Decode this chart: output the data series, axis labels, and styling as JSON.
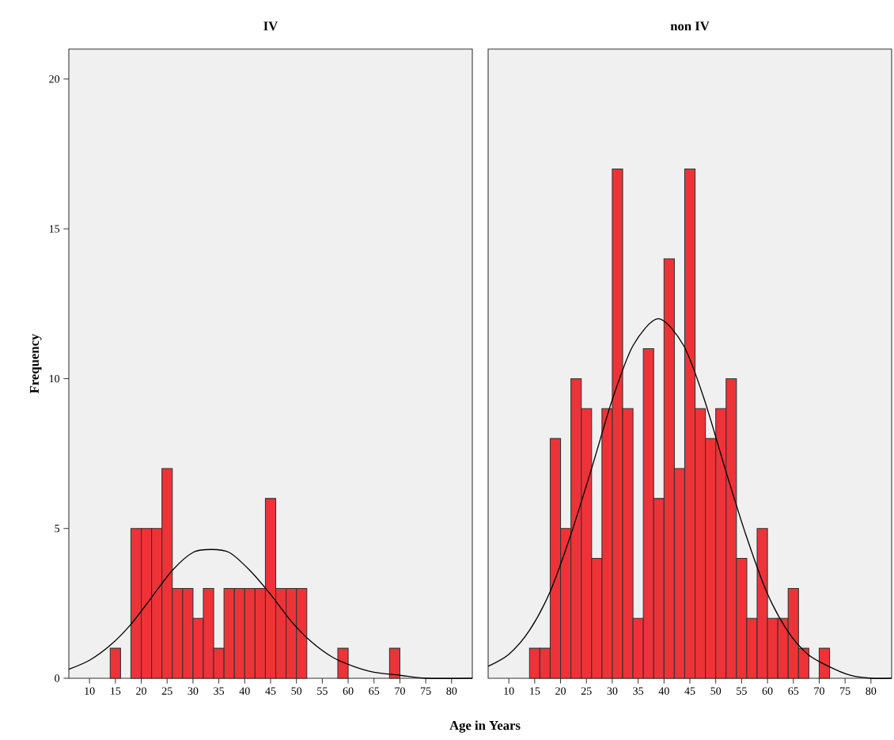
{
  "chart_data": [
    {
      "type": "histogram",
      "title": "IV",
      "xlabel": "Age in Years",
      "ylabel": "Frequency",
      "xlim": [
        6,
        84
      ],
      "ylim": [
        0,
        21
      ],
      "xticks": [
        10,
        15,
        20,
        25,
        30,
        35,
        40,
        45,
        50,
        55,
        60,
        65,
        70,
        75,
        80
      ],
      "yticks": [
        0,
        5,
        10,
        15,
        20
      ],
      "series": [
        {
          "color": "#ee3338",
          "bins": [
            14,
            16,
            18,
            20,
            22,
            24,
            26,
            28,
            30,
            32,
            34,
            36,
            38,
            40,
            42,
            44,
            46,
            48,
            50,
            52,
            54,
            56,
            58,
            60,
            62,
            64,
            66,
            68,
            70
          ],
          "values": [
            1,
            0,
            5,
            5,
            5,
            7,
            3,
            3,
            2,
            3,
            1,
            3,
            3,
            3,
            3,
            6,
            3,
            3,
            3,
            0,
            0,
            0,
            1,
            0,
            0,
            0,
            0,
            1
          ]
        },
        {
          "type": "line",
          "color": "#000000",
          "x": [
            6,
            10,
            14,
            18,
            22,
            26,
            30,
            33.5,
            37,
            41,
            45,
            49,
            53,
            57,
            61,
            65,
            70,
            75,
            84
          ],
          "values": [
            0.3,
            0.6,
            1.1,
            1.8,
            2.7,
            3.6,
            4.2,
            4.3,
            4.2,
            3.6,
            2.8,
            1.9,
            1.2,
            0.7,
            0.4,
            0.2,
            0.1,
            0,
            0
          ]
        }
      ]
    },
    {
      "type": "histogram",
      "title": "non IV",
      "xlim": [
        6,
        84
      ],
      "ylim": [
        0,
        21
      ],
      "xticks": [
        10,
        15,
        20,
        25,
        30,
        35,
        40,
        45,
        50,
        55,
        60,
        65,
        70,
        75,
        80
      ],
      "yticks": [
        0,
        5,
        10,
        15,
        20
      ],
      "tick_labels": "x",
      "series": [
        {
          "color": "#ee3338",
          "bins": [
            14,
            16,
            18,
            20,
            22,
            24,
            26,
            28,
            30,
            32,
            34,
            36,
            38,
            40,
            42,
            44,
            46,
            48,
            50,
            52,
            54,
            56,
            58,
            60,
            62,
            64,
            66,
            68,
            70,
            72
          ],
          "values": [
            1,
            1,
            8,
            5,
            10,
            9,
            4,
            9,
            17,
            9,
            2,
            11,
            6,
            14,
            7,
            17,
            9,
            8,
            9,
            10,
            4,
            2,
            5,
            2,
            2,
            3,
            1,
            0,
            1
          ]
        },
        {
          "type": "line",
          "color": "#000000",
          "x": [
            6,
            10,
            14,
            18,
            22,
            26,
            30,
            34,
            38.9,
            43.8,
            47.8,
            51.8,
            55.8,
            59.8,
            63.8,
            67.8,
            71.8,
            76,
            80,
            84
          ],
          "values": [
            0.4,
            0.8,
            1.6,
            2.9,
            4.8,
            7.0,
            9.3,
            11.1,
            12.0,
            11.1,
            9.3,
            7.0,
            4.8,
            2.9,
            1.6,
            0.8,
            0.4,
            0.1,
            0,
            0
          ]
        }
      ]
    }
  ]
}
